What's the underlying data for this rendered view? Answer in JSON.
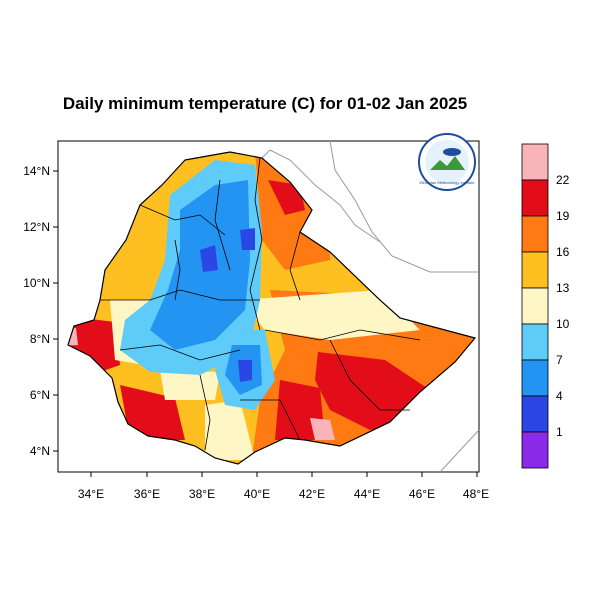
{
  "title": "Daily minimum temperature (C) for 01-02 Jan 2025",
  "x_ticks": [
    "34°E",
    "36°E",
    "38°E",
    "40°E",
    "42°E",
    "44°E",
    "46°E",
    "48°E"
  ],
  "y_ticks": [
    "14°N",
    "12°N",
    "10°N",
    "8°N",
    "6°N",
    "4°N"
  ],
  "colorbar": {
    "labels": [
      "22",
      "19",
      "16",
      "13",
      "10",
      "7",
      "4",
      "1"
    ],
    "colors": [
      "#f8b4b9",
      "#e30d1a",
      "#ff7a12",
      "#fdc020",
      "#fff6c6",
      "#5ecbf8",
      "#2394f2",
      "#2a47e6",
      "#8b2be9"
    ]
  },
  "logo": {
    "text": "Ethiopian Meteorology Institute"
  },
  "colors": {
    "frame": "#000000",
    "border": "#000000",
    "coast": "#9a9a9a"
  }
}
